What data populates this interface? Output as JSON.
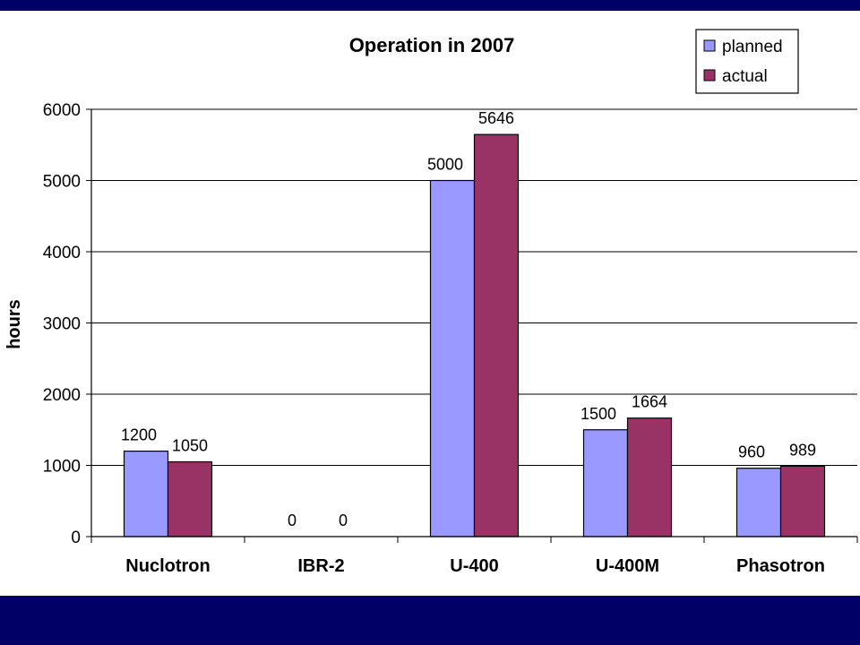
{
  "chart_data": {
    "type": "bar",
    "title": "Operation in 2007",
    "xlabel": "",
    "ylabel": "hours",
    "ylim": [
      0,
      6000
    ],
    "yticks": [
      0,
      1000,
      2000,
      3000,
      4000,
      5000,
      6000
    ],
    "grid": true,
    "legend_position": "top-right",
    "categories": [
      "Nuclotron",
      "IBR-2",
      "U-400",
      "U-400M",
      "Phasotron"
    ],
    "series": [
      {
        "name": "planned",
        "color": "#9999ff",
        "values": [
          1200,
          0,
          5000,
          1500,
          960
        ]
      },
      {
        "name": "actual",
        "color": "#993366",
        "values": [
          1050,
          0,
          5646,
          1664,
          989
        ]
      }
    ]
  },
  "theme": {
    "band_color": "#000066",
    "background": "#ffffff"
  }
}
